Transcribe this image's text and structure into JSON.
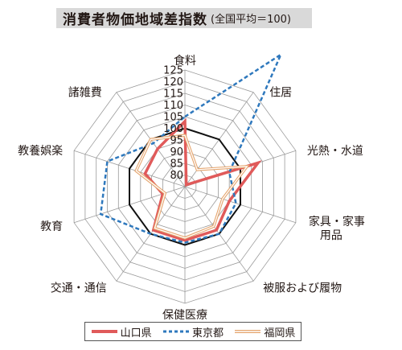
{
  "chart_data": {
    "type": "radar",
    "title": "消費者物価地域差指数",
    "subtitle": "(全国平均＝100)",
    "categories": [
      "食料",
      "住居",
      "光熱・水道",
      "家具・家事用品",
      "被服および履物",
      "保健医療",
      "交通・通信",
      "教育",
      "教養娯楽",
      "諸雑費"
    ],
    "tick_labels": [
      "80",
      "85",
      "90",
      "95",
      "100",
      "105",
      "110",
      "115",
      "120",
      "125"
    ],
    "rlim": [
      75,
      125
    ],
    "grid": true,
    "legend_position": "bottom",
    "series": [
      {
        "name": "山口県",
        "color": "#e05a5a",
        "style": "solid",
        "values": [
          103,
          76,
          108,
          95,
          98,
          98,
          98,
          85,
          93,
          95
        ]
      },
      {
        "name": "東京都",
        "color": "#2e78bd",
        "style": "dashed",
        "values": [
          105,
          145,
          95,
          98,
          100,
          99,
          100,
          113,
          110,
          98
        ]
      },
      {
        "name": "福岡県",
        "color": "#e5a56e",
        "style": "double",
        "values": [
          97,
          84,
          103,
          92,
          96,
          97,
          97,
          84,
          97,
          100
        ]
      }
    ],
    "reference": {
      "value": 100,
      "color": "#111111"
    }
  }
}
